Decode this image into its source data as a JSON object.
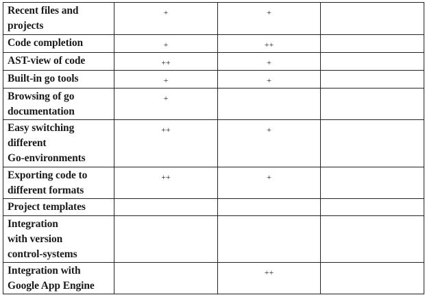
{
  "table": {
    "rows": [
      {
        "feature": "Recent files and projects",
        "values": [
          "+",
          "+",
          ""
        ]
      },
      {
        "feature": "Code completion",
        "values": [
          "+",
          "++",
          ""
        ]
      },
      {
        "feature": "AST-view of code",
        "values": [
          "++",
          "+",
          ""
        ]
      },
      {
        "feature": "Built-in go tools",
        "values": [
          "+",
          "+",
          ""
        ]
      },
      {
        "feature": "Browsing of go documentation",
        "values": [
          "+",
          "",
          ""
        ]
      },
      {
        "feature": "Easy switching different Go-environments",
        "values": [
          "++",
          "+",
          ""
        ]
      },
      {
        "feature": "Exporting code to different formats",
        "values": [
          "++",
          "+",
          ""
        ]
      },
      {
        "feature": "Project templates",
        "values": [
          "",
          "",
          ""
        ]
      },
      {
        "feature": "Integration with version control-systems",
        "values": [
          "",
          "",
          ""
        ]
      },
      {
        "feature": "Integration with Google App Engine",
        "values": [
          "",
          "++",
          ""
        ]
      }
    ]
  }
}
